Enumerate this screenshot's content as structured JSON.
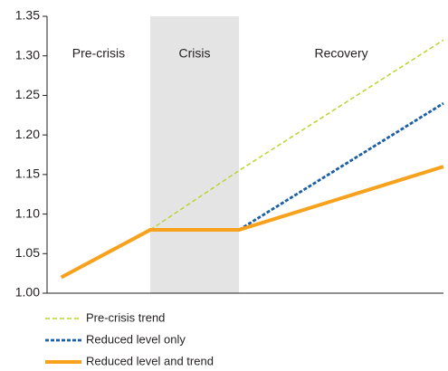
{
  "chart_data": {
    "type": "line",
    "x": [
      0,
      1,
      2,
      4.3
    ],
    "xlim": [
      -0.16,
      4.3
    ],
    "ylim": [
      1.0,
      1.35
    ],
    "yticks": [
      {
        "value": 1.0,
        "label": "1.00"
      },
      {
        "value": 1.05,
        "label": "1.05"
      },
      {
        "value": 1.1,
        "label": "1.10"
      },
      {
        "value": 1.15,
        "label": "1.15"
      },
      {
        "value": 1.2,
        "label": "1.20"
      },
      {
        "value": 1.25,
        "label": "1.25"
      },
      {
        "value": 1.3,
        "label": "1.30"
      },
      {
        "value": 1.35,
        "label": "1.35"
      }
    ],
    "regions": [
      {
        "label": "Pre-crisis",
        "span": [
          -0.16,
          1
        ],
        "shaded": false
      },
      {
        "label": "Crisis",
        "span": [
          1,
          2
        ],
        "shaded": true,
        "color": "#e4e4e5"
      },
      {
        "label": "Recovery",
        "span": [
          2,
          4.3
        ],
        "shaded": false
      }
    ],
    "series": [
      {
        "name": "Pre-crisis trend",
        "color": "#b9d532",
        "dash": "5,3",
        "width": 1.5,
        "values": [
          null,
          1.08,
          1.155,
          1.32
        ]
      },
      {
        "name": "Reduced level only",
        "color": "#1b5fa6",
        "dash": "4,2",
        "width": 2.8,
        "values": [
          null,
          null,
          1.08,
          1.24
        ]
      },
      {
        "name": "Reduced level and trend",
        "color": "#f7a11c",
        "dash": "none",
        "width": 4,
        "values": [
          1.02,
          1.08,
          1.08,
          1.16
        ]
      }
    ]
  }
}
